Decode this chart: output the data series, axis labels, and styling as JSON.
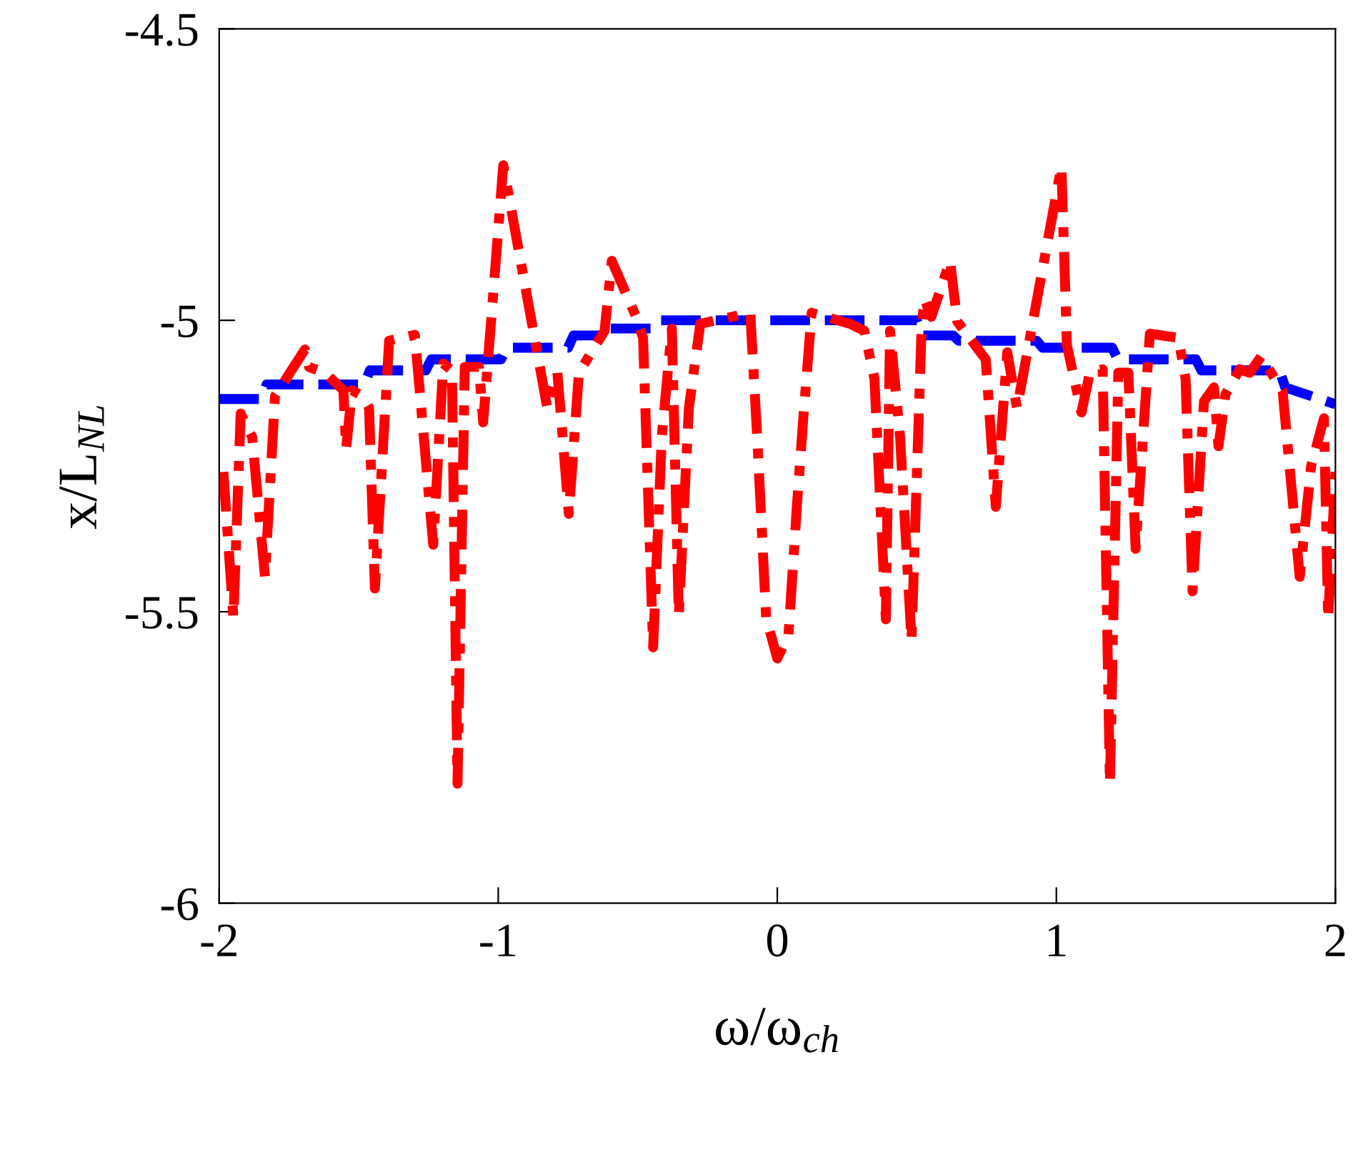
{
  "chart_data": {
    "type": "line",
    "xlabel": "ω/ω$_{ch}$",
    "ylabel": "x/L$_{NL}$",
    "xlim": [
      -2,
      2
    ],
    "ylim": [
      -6,
      -4.5
    ],
    "xticks": [
      {
        "value": -2,
        "label": "-2"
      },
      {
        "value": -1,
        "label": "-1"
      },
      0,
      1,
      2
    ],
    "yticks": [
      {
        "value": -6,
        "label": "-6"
      },
      {
        "value": -5.5,
        "label": "-5.5"
      },
      {
        "value": -5,
        "label": "-5"
      },
      {
        "value": -4.5,
        "label": "-4.5"
      }
    ],
    "grid": false,
    "legend": false,
    "marker": "none",
    "series": [
      {
        "color": "#0000ff",
        "line_style": "dashed",
        "x": [
          -2,
          -1.85,
          -1.83,
          -1.48,
          -1.46,
          -1.26,
          -1.24,
          -0.99,
          -0.97,
          -0.75,
          -0.73,
          -0.62,
          -0.6,
          -0.45,
          -0.43,
          0.5,
          0.52,
          0.63,
          0.65,
          0.93,
          0.95,
          1.2,
          1.22,
          1.5,
          1.52,
          1.8,
          1.82,
          2
        ],
        "values": [
          -5.135,
          -5.135,
          -5.11,
          -5.11,
          -5.086,
          -5.086,
          -5.067,
          -5.067,
          -5.047,
          -5.047,
          -5.026,
          -5.026,
          -5.014,
          -5.014,
          -5.0,
          -5.0,
          -5.026,
          -5.026,
          -5.035,
          -5.035,
          -5.047,
          -5.047,
          -5.067,
          -5.067,
          -5.086,
          -5.086,
          -5.115,
          -5.144
        ]
      },
      {
        "color": "#ff0000",
        "line_style": "dashdot",
        "x": [
          -1.985,
          -1.949,
          -1.923,
          -1.882,
          -1.836,
          -1.8,
          -1.693,
          -1.678,
          -1.621,
          -1.555,
          -1.545,
          -1.524,
          -1.488,
          -1.463,
          -1.442,
          -1.391,
          -1.299,
          -1.233,
          -1.197,
          -1.166,
          -1.146,
          -1.12,
          -1.069,
          -1.054,
          -0.982,
          -0.824,
          -0.788,
          -0.747,
          -0.711,
          -0.619,
          -0.593,
          -0.506,
          -0.481,
          -0.445,
          -0.414,
          -0.378,
          -0.353,
          -0.317,
          -0.276,
          -0.097,
          -0.072,
          -0.04,
          0.0,
          0.04,
          0.07,
          0.092,
          0.123,
          0.261,
          0.312,
          0.348,
          0.389,
          0.404,
          0.44,
          0.481,
          0.517,
          0.527,
          0.552,
          0.619,
          0.645,
          0.747,
          0.783,
          0.824,
          0.859,
          1.018,
          1.038,
          1.09,
          1.12,
          1.166,
          1.192,
          1.222,
          1.258,
          1.284,
          1.335,
          1.437,
          1.463,
          1.488,
          1.529,
          1.565,
          1.581,
          1.606,
          1.657,
          1.693,
          1.734,
          1.811,
          1.872,
          1.913,
          1.959,
          1.974,
          2.0
        ],
        "values": [
          -5.26,
          -5.51,
          -5.16,
          -5.2,
          -5.44,
          -5.13,
          -5.05,
          -5.08,
          -5.09,
          -5.12,
          -5.22,
          -5.12,
          -5.13,
          -5.15,
          -5.46,
          -5.035,
          -5.025,
          -5.385,
          -5.074,
          -5.086,
          -5.795,
          -5.08,
          -5.08,
          -5.175,
          -4.734,
          -5.151,
          -5.09,
          -5.332,
          -5.09,
          -5.018,
          -4.898,
          -4.994,
          -5.03,
          -5.561,
          -5.2,
          -5.014,
          -5.506,
          -5.151,
          -5.006,
          -4.987,
          -5.2,
          -5.51,
          -5.58,
          -5.54,
          -5.32,
          -5.175,
          -4.987,
          -5.006,
          -5.018,
          -5.1,
          -5.513,
          -5.018,
          -5.2,
          -5.549,
          -5.014,
          -4.963,
          -4.994,
          -4.898,
          -5.002,
          -5.067,
          -5.32,
          -5.055,
          -5.151,
          -4.736,
          -5.043,
          -5.158,
          -5.09,
          -5.084,
          -5.795,
          -5.09,
          -5.09,
          -5.392,
          -5.023,
          -5.03,
          -5.1,
          -5.465,
          -5.139,
          -5.115,
          -5.216,
          -5.127,
          -5.084,
          -5.09,
          -5.062,
          -5.122,
          -5.44,
          -5.25,
          -5.168,
          -5.513,
          -5.26
        ]
      }
    ]
  }
}
